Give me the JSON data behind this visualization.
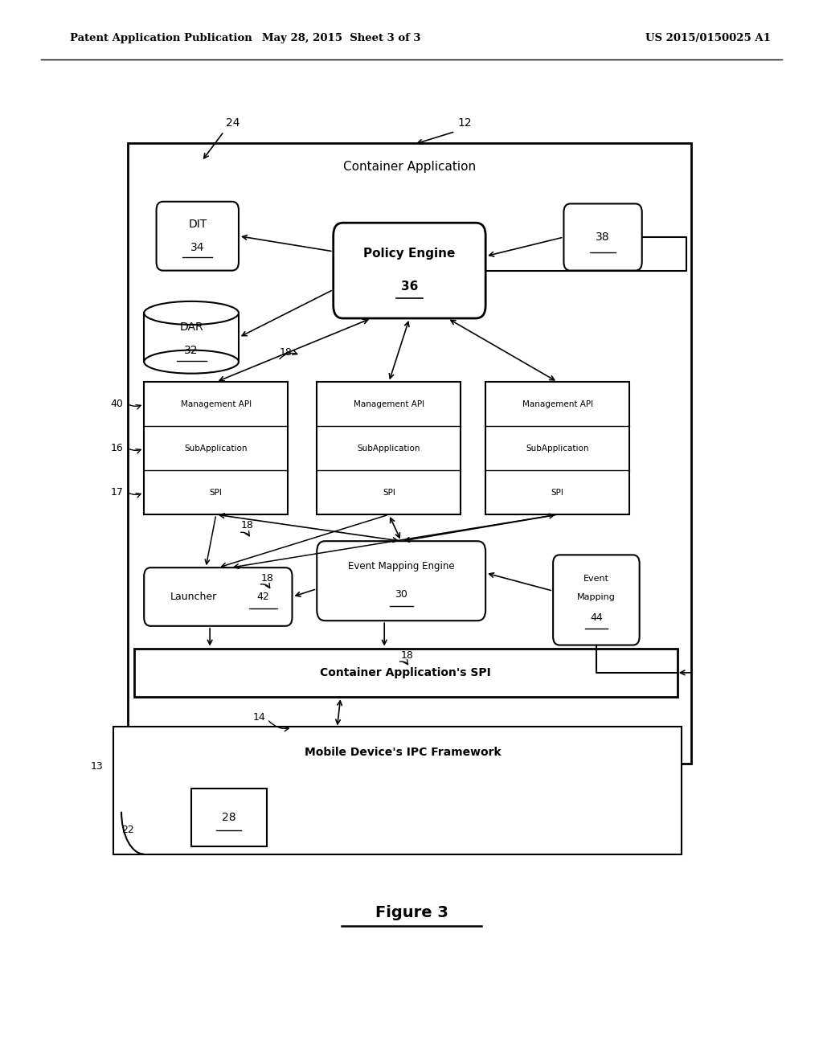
{
  "bg_color": "#ffffff",
  "header_left": "Patent Application Publication",
  "header_mid": "May 28, 2015  Sheet 3 of 3",
  "header_right": "US 2015/0150025 A1",
  "figure_label": "Figure 3"
}
